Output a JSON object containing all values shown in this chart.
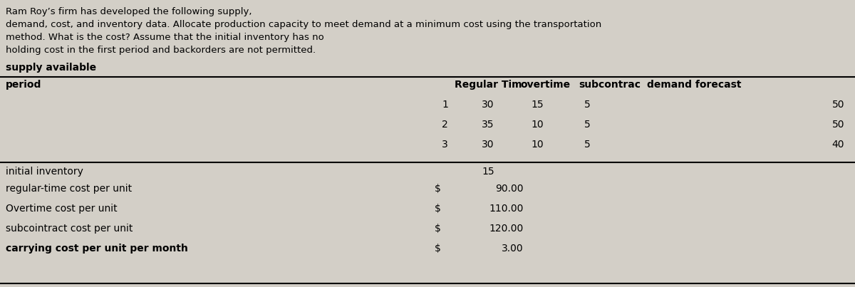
{
  "bg_color": "#d3cfc7",
  "text_color": "#000000",
  "description_lines": [
    "Ram Roy’s firm has developed the following supply,",
    "demand, cost, and inventory data. Allocate production capacity to meet demand at a minimum cost using the transportation",
    "method. What is the cost? Assume that the initial inventory has no",
    "holding cost in the first period and backorders are not permitted."
  ],
  "supply_label": "supply available",
  "col_header_left": "period",
  "col_headers": [
    "Regular Tim",
    "overtime",
    "subcontrac",
    "demand forecast"
  ],
  "periods": [
    "1",
    "2",
    "3"
  ],
  "regular_time": [
    "30",
    "35",
    "30"
  ],
  "overtime": [
    "15",
    "10",
    "10"
  ],
  "subcontract": [
    "5",
    "5",
    "5"
  ],
  "demand_forecast": [
    "50",
    "50",
    "40"
  ],
  "initial_inventory_label": "initial inventory",
  "initial_inventory_value": "15",
  "cost_labels": [
    "regular-time cost per unit",
    "Overtime cost per unit",
    "subcointract cost per unit",
    "carrying cost per unit per month"
  ],
  "cost_values": [
    "90.00",
    "110.00",
    "120.00",
    "3.00"
  ],
  "cost_bold": [
    false,
    false,
    false,
    true
  ]
}
